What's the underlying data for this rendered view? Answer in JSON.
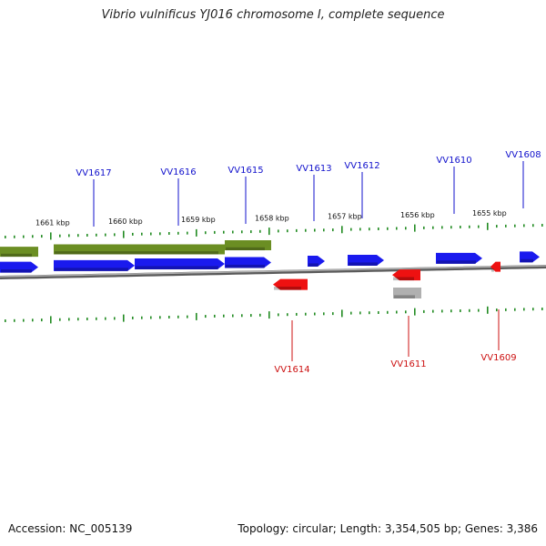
{
  "title": "Vibrio vulnificus YJ016 chromosome I, complete sequence",
  "footer": {
    "accession": "Accession: NC_005139",
    "summary": "Topology: circular; Length: 3,354,505 bp; Genes: 3,386"
  },
  "scale_labels": [
    "1661 kbp",
    "1660 kbp",
    "1659 kbp",
    "1658 kbp",
    "1657 kbp",
    "1656 kbp",
    "1655 kbp"
  ],
  "genes_top": [
    "VV1617",
    "VV1616",
    "VV1615",
    "VV1613",
    "VV1612",
    "VV1610",
    "VV1608"
  ],
  "genes_bottom": [
    "VV1614",
    "VV1611",
    "VV1609"
  ],
  "colors": {
    "forward_gene": "#1a1aee",
    "reverse_gene": "#ee1111",
    "operon_bar": "#6b8e23",
    "pseudo_gene": "#b0b0b0",
    "tick": "#228b22",
    "backbone": "#808080"
  }
}
